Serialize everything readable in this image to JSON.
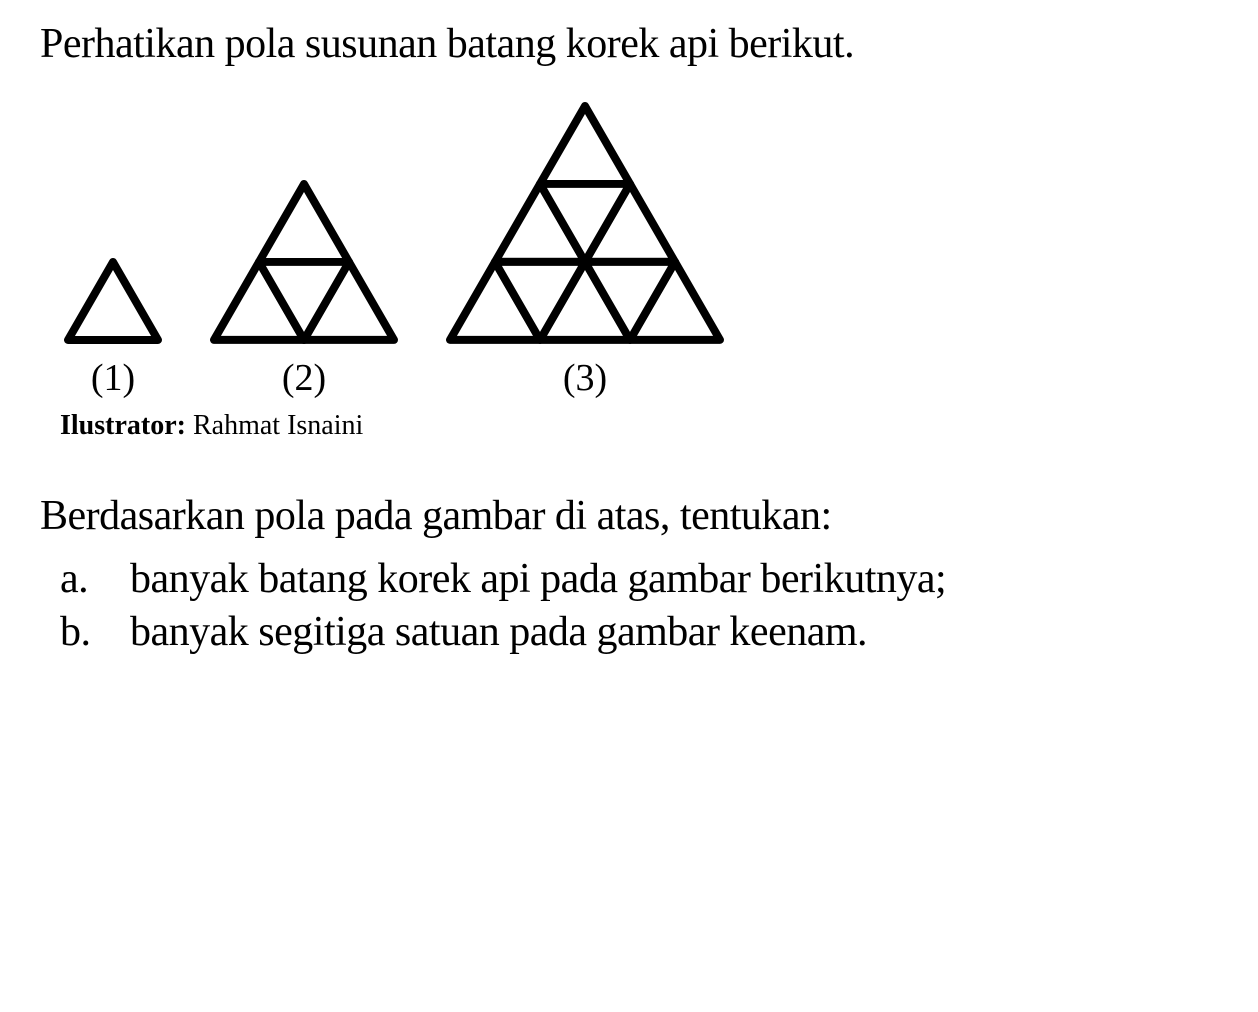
{
  "title": "Perhatikan pola susunan batang korek api berikut.",
  "figures": {
    "labels": [
      "(1)",
      "(2)",
      "(3)"
    ],
    "triangle_rows": [
      1,
      2,
      3
    ],
    "unit_size": 90,
    "stroke_width": 8,
    "stroke_color": "#000000",
    "fill_color": "#ffffff"
  },
  "illustrator": {
    "label": "Ilustrator:",
    "name": "Rahmat Isnaini"
  },
  "instruction": "Berdasarkan pola pada gambar di atas, tentukan:",
  "questions": [
    {
      "letter": "a.",
      "text": "banyak batang korek api pada gambar berikutnya;"
    },
    {
      "letter": "b.",
      "text": "banyak segitiga satuan pada gambar keenam."
    }
  ]
}
